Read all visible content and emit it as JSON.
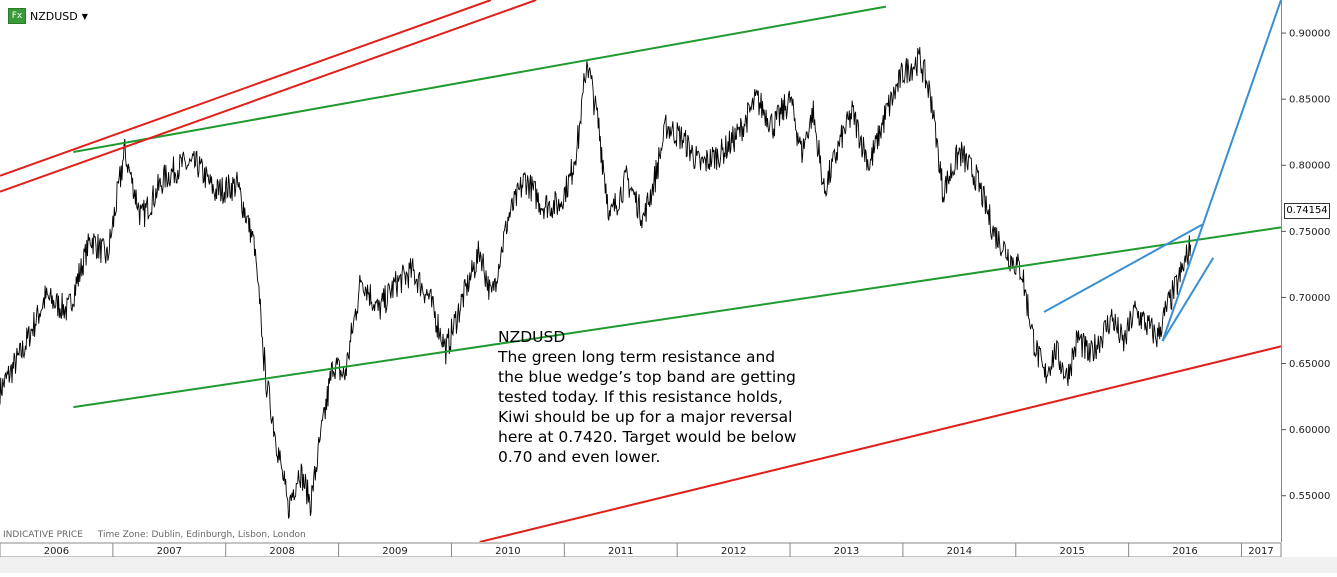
{
  "header": {
    "fx_label": "Fx",
    "symbol": "NZDUSD",
    "dropdown_glyph": "▼"
  },
  "annotation": {
    "lines": [
      "NZDUSD",
      "The green long term resistance and",
      "the blue wedge’s top band are getting",
      "tested today. If this resistance holds,",
      "Kiwi should be up for a major reversal",
      "here at 0.7420. Target would be below",
      "0.70 and even lower."
    ]
  },
  "footer": {
    "price_type": "INDICATIVE PRICE",
    "timezone": "Time Zone: Dublin, Edinburgh, Lisbon, London"
  },
  "current_price": "0.74154",
  "colors": {
    "price": "#000000",
    "green_line": "#1e9a2e",
    "red_line": "#e0201a",
    "blue_line": "#3a8fd0",
    "axis_bg": "#f0f0f0"
  },
  "chart_data": {
    "type": "line",
    "title": "NZDUSD",
    "xlabel": "",
    "ylabel": "",
    "x_tick_labels": [
      "2006",
      "2007",
      "2008",
      "2009",
      "2010",
      "2011",
      "2012",
      "2013",
      "2014",
      "2015",
      "2016",
      "2017"
    ],
    "y_tick_labels": [
      "0.90000",
      "0.85000",
      "0.80000",
      "0.75000",
      "0.70000",
      "0.65000",
      "0.60000",
      "0.55000"
    ],
    "y_ticks": [
      0.9,
      0.85,
      0.8,
      0.75,
      0.7,
      0.65,
      0.6,
      0.55
    ],
    "ylim": [
      0.515,
      0.925
    ],
    "xlim": [
      2006.0,
      2017.35
    ],
    "grid": false,
    "series": [
      {
        "x": [
          2006.0,
          2006.2,
          2006.4,
          2006.6,
          2006.8,
          2006.95,
          2007.1,
          2007.25,
          2007.35,
          2007.45,
          2007.6,
          2007.75,
          2007.9,
          2008.1,
          2008.25,
          2008.35,
          2008.45,
          2008.55,
          2008.65,
          2008.75,
          2008.85,
          2008.95,
          2009.05,
          2009.2,
          2009.35,
          2009.5,
          2009.65,
          2009.8,
          2009.95,
          2010.1,
          2010.25,
          2010.35,
          2010.5,
          2010.65,
          2010.8,
          2010.95,
          2011.05,
          2011.12,
          2011.2,
          2011.3,
          2011.4,
          2011.55,
          2011.7,
          2011.8,
          2011.9,
          2012.05,
          2012.2,
          2012.4,
          2012.55,
          2012.7,
          2012.85,
          2013.0,
          2013.1,
          2013.2,
          2013.3,
          2013.45,
          2013.55,
          2013.7,
          2013.85,
          2014.0,
          2014.15,
          2014.25,
          2014.35,
          2014.5,
          2014.65,
          2014.8,
          2014.95,
          2015.05,
          2015.15,
          2015.25,
          2015.35,
          2015.45,
          2015.55,
          2015.65,
          2015.75,
          2015.85,
          2015.95,
          2016.05,
          2016.15,
          2016.25,
          2016.35,
          2016.45,
          2016.55
        ],
        "y": [
          0.63,
          0.66,
          0.7,
          0.69,
          0.745,
          0.73,
          0.81,
          0.76,
          0.775,
          0.79,
          0.8,
          0.8,
          0.78,
          0.785,
          0.74,
          0.64,
          0.59,
          0.54,
          0.57,
          0.545,
          0.6,
          0.65,
          0.64,
          0.715,
          0.69,
          0.71,
          0.72,
          0.7,
          0.66,
          0.7,
          0.735,
          0.7,
          0.76,
          0.79,
          0.77,
          0.77,
          0.79,
          0.82,
          0.88,
          0.83,
          0.76,
          0.79,
          0.76,
          0.79,
          0.83,
          0.82,
          0.8,
          0.81,
          0.825,
          0.85,
          0.83,
          0.85,
          0.81,
          0.84,
          0.78,
          0.82,
          0.84,
          0.8,
          0.84,
          0.87,
          0.88,
          0.85,
          0.78,
          0.81,
          0.79,
          0.75,
          0.73,
          0.72,
          0.67,
          0.64,
          0.66,
          0.64,
          0.67,
          0.655,
          0.67,
          0.685,
          0.665,
          0.69,
          0.68,
          0.67,
          0.695,
          0.715,
          0.74
        ]
      }
    ],
    "trendlines": [
      {
        "color": "green",
        "points": [
          [
            2006.65,
            0.81
          ],
          [
            2013.85,
            0.92
          ]
        ]
      },
      {
        "color": "green",
        "points": [
          [
            2006.65,
            0.617
          ],
          [
            2017.35,
            0.753
          ]
        ]
      },
      {
        "color": "red",
        "points": [
          [
            2006.0,
            0.78
          ],
          [
            2010.75,
            0.925
          ]
        ]
      },
      {
        "color": "red",
        "points": [
          [
            2006.0,
            0.792
          ],
          [
            2010.35,
            0.925
          ]
        ]
      },
      {
        "color": "red",
        "points": [
          [
            2010.25,
            0.515
          ],
          [
            2017.35,
            0.663
          ]
        ]
      },
      {
        "color": "blue",
        "points": [
          [
            2015.25,
            0.689
          ],
          [
            2016.65,
            0.755
          ]
        ]
      },
      {
        "color": "blue",
        "points": [
          [
            2016.3,
            0.667
          ],
          [
            2017.35,
            0.925
          ]
        ]
      },
      {
        "color": "blue",
        "points": [
          [
            2016.3,
            0.667
          ],
          [
            2016.75,
            0.73
          ]
        ]
      }
    ]
  }
}
